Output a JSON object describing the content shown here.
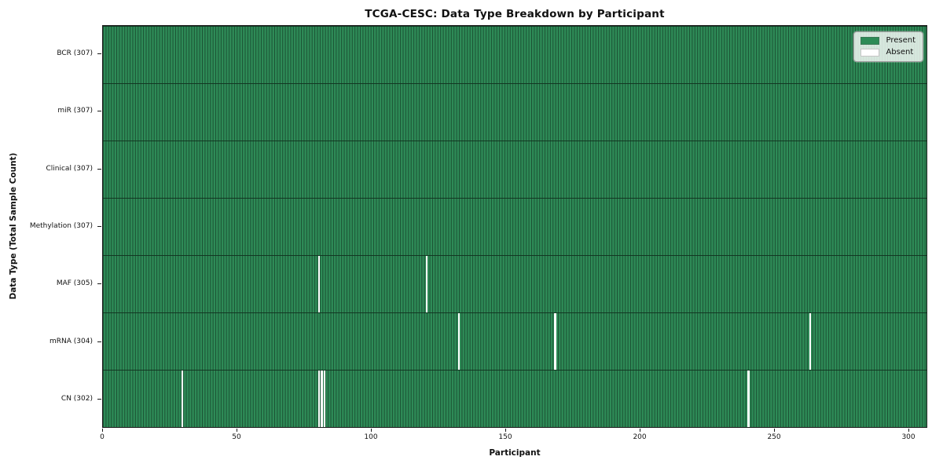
{
  "figure": {
    "title": "TCGA-CESC: Data Type Breakdown by Participant",
    "xlabel": "Participant",
    "ylabel": "Data Type (Total Sample Count)"
  },
  "legend": {
    "items": [
      {
        "label": "Present",
        "color": "#2e8b57"
      },
      {
        "label": "Absent",
        "color": "#ffffff"
      }
    ]
  },
  "colors": {
    "present": "#2e8b57",
    "absent": "#ffffff",
    "cell_edge": "#1b5133",
    "axis_border": "#1a1a1a"
  },
  "chart_data": {
    "type": "heatmap",
    "title": "TCGA-CESC: Data Type Breakdown by Participant",
    "xlabel": "Participant",
    "ylabel": "Data Type (Total Sample Count)",
    "legend_position": "upper right",
    "grid": "cell-edges",
    "n_participants": 307,
    "xlim": [
      0,
      307
    ],
    "x_ticks": [
      0,
      50,
      100,
      150,
      200,
      250,
      300
    ],
    "value_encoding": {
      "present": 1,
      "absent": 0
    },
    "rows": [
      {
        "name": "BCR",
        "label": "BCR (307)",
        "present_count": 307,
        "absent_participants": []
      },
      {
        "name": "miR",
        "label": "miR (307)",
        "present_count": 307,
        "absent_participants": []
      },
      {
        "name": "Clinical",
        "label": "Clinical (307)",
        "present_count": 307,
        "absent_participants": []
      },
      {
        "name": "Methylation",
        "label": "Methylation (307)",
        "present_count": 307,
        "absent_participants": []
      },
      {
        "name": "MAF",
        "label": "MAF (305)",
        "present_count": 305,
        "absent_participants": [
          80,
          120
        ]
      },
      {
        "name": "mRNA",
        "label": "mRNA (304)",
        "present_count": 304,
        "absent_participants": [
          132,
          168,
          263
        ]
      },
      {
        "name": "CN",
        "label": "CN (302)",
        "present_count": 302,
        "absent_participants": [
          29,
          80,
          81,
          82,
          240
        ]
      }
    ]
  }
}
